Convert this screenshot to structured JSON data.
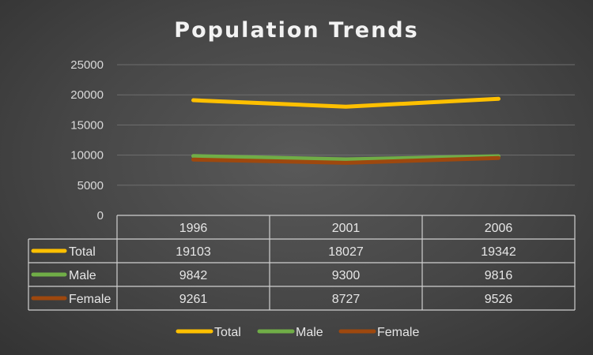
{
  "chart_data": {
    "type": "line",
    "title": "Population Trends",
    "categories": [
      "1996",
      "2001",
      "2006"
    ],
    "series": [
      {
        "name": "Total",
        "values": [
          19103,
          18027,
          19342
        ],
        "color": "#FFC000"
      },
      {
        "name": "Male",
        "values": [
          9842,
          9300,
          9816
        ],
        "color": "#70AD47"
      },
      {
        "name": "Female",
        "values": [
          9261,
          8727,
          9526
        ],
        "color": "#9E480E"
      }
    ],
    "y_ticks": [
      "0",
      "5000",
      "10000",
      "15000",
      "20000",
      "25000"
    ],
    "ylim": [
      0,
      25000
    ],
    "grid": true,
    "legend": "bottom",
    "data_table": true
  }
}
